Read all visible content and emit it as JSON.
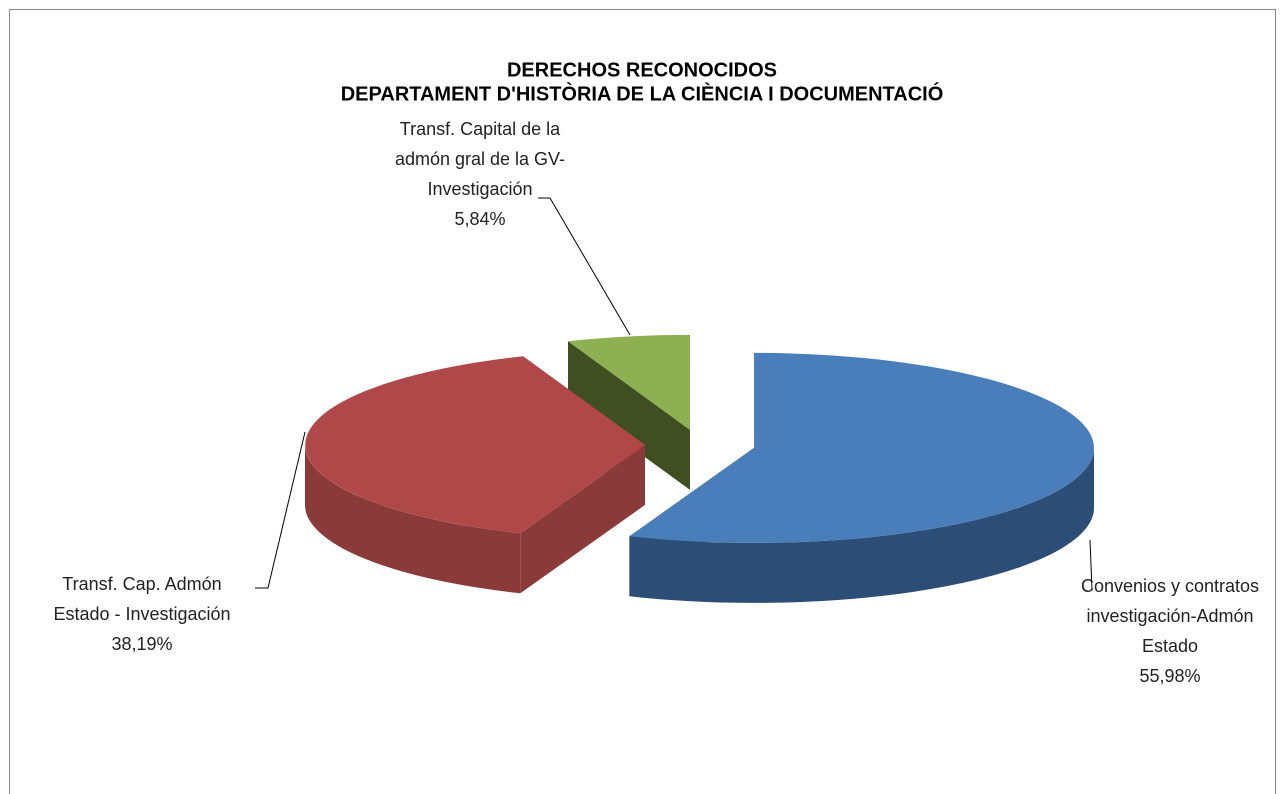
{
  "chart_data": {
    "type": "pie",
    "title": "DERECHOS RECONOCIDOS",
    "subtitle": "DEPARTAMENT D'HISTÒRIA DE LA CIÈNCIA I DOCUMENTACIÓ",
    "categories": [
      [
        "Convenios y contratos",
        "investigación-Admón",
        "Estado"
      ],
      [
        "Transf. Cap. Admón",
        "Estado - Investigación"
      ],
      [
        "Transf. Capital de la",
        "admón gral de la GV-",
        "Investigación"
      ]
    ],
    "values": [
      55.98,
      38.19,
      5.84
    ],
    "value_labels": [
      "55,98%",
      "38,19%",
      "5,84%"
    ],
    "colors": [
      "#4a7ebb",
      "#b0484a",
      "#8db052"
    ],
    "side_colors": [
      "#2c4d75",
      "#8b3a3a",
      "#3f4f22"
    ],
    "exploded": true,
    "three_d": true
  }
}
